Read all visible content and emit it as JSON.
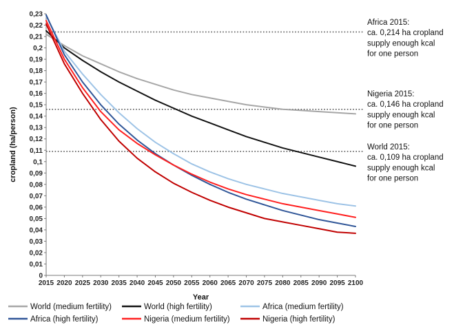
{
  "chart_data": {
    "type": "line",
    "title": "",
    "xlabel": "Year",
    "ylabel": "cropland (ha/person)",
    "xlim": [
      2015,
      2100
    ],
    "ylim": [
      0,
      0.23
    ],
    "x_ticks": [
      "2015",
      "2020",
      "2025",
      "2030",
      "2035",
      "2040",
      "2045",
      "2050",
      "2055",
      "2060",
      "2065",
      "2070",
      "2075",
      "2080",
      "2085",
      "2090",
      "2095",
      "2100"
    ],
    "y_ticks": [
      "0",
      "0,01",
      "0,02",
      "0,03",
      "0,04",
      "0,05",
      "0,06",
      "0,07",
      "0,08",
      "0,09",
      "0,1",
      "0,11",
      "0,12",
      "0,13",
      "0,14",
      "0,15",
      "0,16",
      "0,17",
      "0,18",
      "0,19",
      "0,2",
      "0,21",
      "0,22",
      "0,23"
    ],
    "grid": false,
    "legend_position": "bottom",
    "x": [
      2015,
      2020,
      2025,
      2030,
      2035,
      2040,
      2045,
      2050,
      2055,
      2060,
      2065,
      2070,
      2075,
      2080,
      2085,
      2090,
      2095,
      2100
    ],
    "series": [
      {
        "name": "World (medium fertility)",
        "color": "#a6a6a6",
        "values": [
          0.212,
          0.202,
          0.193,
          0.186,
          0.179,
          0.173,
          0.168,
          0.163,
          0.159,
          0.156,
          0.153,
          0.15,
          0.148,
          0.146,
          0.145,
          0.144,
          0.143,
          0.142
        ]
      },
      {
        "name": "World (high fertility)",
        "color": "#111111",
        "values": [
          0.215,
          0.2,
          0.189,
          0.179,
          0.17,
          0.162,
          0.154,
          0.147,
          0.14,
          0.134,
          0.128,
          0.122,
          0.117,
          0.112,
          0.108,
          0.104,
          0.1,
          0.096
        ]
      },
      {
        "name": "Africa (medium fertility)",
        "color": "#9dc3e6",
        "values": [
          0.228,
          0.197,
          0.177,
          0.159,
          0.143,
          0.129,
          0.117,
          0.107,
          0.098,
          0.091,
          0.085,
          0.08,
          0.076,
          0.072,
          0.069,
          0.066,
          0.063,
          0.061
        ]
      },
      {
        "name": "Africa (high fertility)",
        "color": "#2f5597",
        "values": [
          0.229,
          0.194,
          0.17,
          0.15,
          0.133,
          0.119,
          0.107,
          0.097,
          0.088,
          0.08,
          0.073,
          0.067,
          0.062,
          0.057,
          0.053,
          0.049,
          0.046,
          0.043
        ]
      },
      {
        "name": "Nigeria (medium fertility)",
        "color": "#ff1f1f",
        "values": [
          0.224,
          0.19,
          0.165,
          0.144,
          0.128,
          0.116,
          0.106,
          0.097,
          0.089,
          0.082,
          0.076,
          0.071,
          0.067,
          0.063,
          0.06,
          0.057,
          0.054,
          0.051
        ]
      },
      {
        "name": "Nigeria (high fertility)",
        "color": "#c00000",
        "values": [
          0.221,
          0.186,
          0.16,
          0.137,
          0.118,
          0.103,
          0.091,
          0.081,
          0.073,
          0.066,
          0.06,
          0.055,
          0.05,
          0.047,
          0.044,
          0.041,
          0.038,
          0.037
        ]
      }
    ],
    "reference_lines": [
      {
        "y": 0.214,
        "lines": [
          "Africa 2015:",
          "ca. 0,214 ha cropland",
          "supply enough kcal",
          "for one person"
        ]
      },
      {
        "y": 0.146,
        "lines": [
          "Nigeria 2015:",
          "ca. 0,146 ha cropland",
          "supply enough kcal",
          "for one person"
        ]
      },
      {
        "y": 0.109,
        "lines": [
          "World 2015:",
          "ca. 0,109 ha cropland",
          "supply enough kcal",
          "for one person"
        ]
      }
    ]
  }
}
